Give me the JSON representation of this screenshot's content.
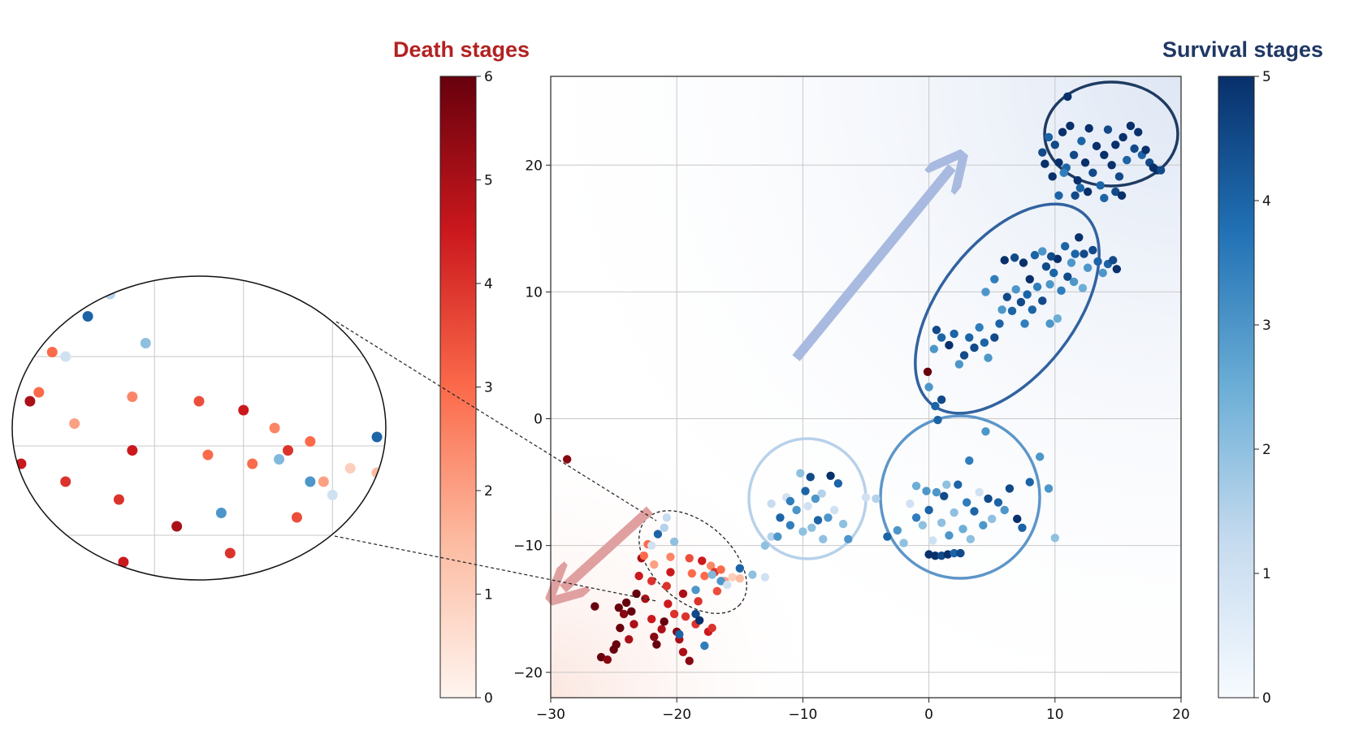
{
  "chart_data": {
    "type": "scatter",
    "title": "",
    "xlabel": "",
    "ylabel": "",
    "xlim": [
      -30,
      20
    ],
    "ylim": [
      -22,
      27
    ],
    "xticks": [
      "−30",
      "−20",
      "−10",
      "0",
      "10",
      "20"
    ],
    "xtick_values": [
      -30,
      -20,
      -10,
      0,
      10,
      20
    ],
    "yticks": [
      "−20",
      "−10",
      "0",
      "10",
      "20"
    ],
    "ytick_values": [
      -20,
      -10,
      0,
      10,
      20
    ],
    "grid": true,
    "death_colorbar": {
      "title": "Death stages",
      "title_color": "#b22222",
      "range": [
        0,
        6
      ],
      "ticks": [
        "0",
        "1",
        "2",
        "3",
        "4",
        "5",
        "6"
      ],
      "colormap": [
        "#fff5f0",
        "#fcbba1",
        "#fb6a4a",
        "#cb181d",
        "#67000d"
      ]
    },
    "survival_colorbar": {
      "title": "Survival stages",
      "title_color": "#1f3864",
      "range": [
        0,
        5
      ],
      "ticks": [
        "0",
        "1",
        "2",
        "3",
        "4",
        "5"
      ],
      "colormap": [
        "#f7fbff",
        "#c6dbef",
        "#6baed6",
        "#2171b5",
        "#08306b"
      ]
    },
    "series": [
      {
        "group": "death",
        "points": [
          [
            -26.5,
            -14.8,
            6
          ],
          [
            -26,
            -18.8,
            6
          ],
          [
            -25.5,
            -19,
            5.5
          ],
          [
            -25,
            -18.2,
            6
          ],
          [
            -24.5,
            -16.5,
            6
          ],
          [
            -24.8,
            -17.8,
            6
          ],
          [
            -24.2,
            -15.4,
            5.5
          ],
          [
            -24,
            -14.5,
            6
          ],
          [
            -23.6,
            -15.2,
            6
          ],
          [
            -23.4,
            -16.2,
            5
          ],
          [
            -23.2,
            -13.8,
            6
          ],
          [
            -23,
            -12.4,
            4.5
          ],
          [
            -22.8,
            -11,
            5
          ],
          [
            -22.5,
            -14.2,
            5
          ],
          [
            -22,
            -15.8,
            4.5
          ],
          [
            -22,
            -12.8,
            4
          ],
          [
            -21.8,
            -17.2,
            5.5
          ],
          [
            -21.6,
            -17.8,
            6
          ],
          [
            -21.2,
            -16.6,
            5
          ],
          [
            -21,
            -16,
            6
          ],
          [
            -20.8,
            -13.2,
            4
          ],
          [
            -20.5,
            -10.9,
            2.5
          ],
          [
            -20.5,
            -12.1,
            4.5
          ],
          [
            -20.2,
            -15.4,
            4
          ],
          [
            -20,
            -16.8,
            5.5
          ],
          [
            -19.8,
            -17.4,
            5
          ],
          [
            -19.5,
            -18.4,
            5
          ],
          [
            -19.5,
            -13.8,
            5
          ],
          [
            -19.3,
            -15.6,
            4
          ],
          [
            -19,
            -19.1,
            5.5
          ],
          [
            -19,
            -11,
            3.5
          ],
          [
            -18.8,
            -12.2,
            3
          ],
          [
            -18.5,
            -16.2,
            4
          ],
          [
            -18.3,
            -14.4,
            4
          ],
          [
            -18,
            -11.2,
            4.5
          ],
          [
            -17.8,
            -12.4,
            3
          ],
          [
            -17.5,
            -16.8,
            4.5
          ],
          [
            -17.3,
            -11.6,
            2.5
          ],
          [
            -17,
            -12.1,
            4
          ],
          [
            -16.8,
            -13.6,
            3.5
          ],
          [
            -16.5,
            -11.9,
            3
          ],
          [
            -16.2,
            -12.8,
            2
          ],
          [
            -15.6,
            -12.5,
            1
          ],
          [
            -15,
            -12.6,
            1.5
          ],
          [
            -21.8,
            -11.5,
            2
          ],
          [
            -22.6,
            -10.8,
            3
          ],
          [
            -17.2,
            -16.5,
            4
          ],
          [
            -24.6,
            -14.9,
            6
          ],
          [
            -23.8,
            -17.4,
            5
          ],
          [
            -20.7,
            -14.6,
            4.5
          ],
          [
            -22.3,
            -9.9,
            3
          ],
          [
            -28.7,
            -3.2,
            5.5
          ],
          [
            -0.1,
            3.7,
            6
          ]
        ]
      },
      {
        "group": "survival",
        "points": [
          [
            -22,
            -10,
            1
          ],
          [
            -21.5,
            -9.1,
            4
          ],
          [
            -21,
            -8.6,
            1.5
          ],
          [
            -20.2,
            -9.7,
            2
          ],
          [
            -20.8,
            -7.8,
            1.2
          ],
          [
            -18.5,
            -13.5,
            3
          ],
          [
            -17.2,
            -12.3,
            2.2
          ],
          [
            -16.5,
            -12.8,
            3
          ],
          [
            -16,
            -13.1,
            1
          ],
          [
            -15,
            -11.8,
            4
          ],
          [
            -14,
            -12.3,
            2
          ],
          [
            -13,
            -12.5,
            1
          ],
          [
            -19.8,
            -17,
            4
          ],
          [
            -18.5,
            -15.4,
            4.5
          ],
          [
            -18.2,
            -15.9,
            5
          ],
          [
            -17.8,
            -17.9,
            3.5
          ],
          [
            -13,
            -10,
            2
          ],
          [
            -12.5,
            -9.3,
            1.5
          ],
          [
            -12,
            -9.3,
            3
          ],
          [
            -11.8,
            -7.8,
            4
          ],
          [
            -11,
            -8.4,
            3.5
          ],
          [
            -11.3,
            -6.2,
            1
          ],
          [
            -10.5,
            -7.2,
            3
          ],
          [
            -10,
            -8.9,
            2
          ],
          [
            -9.8,
            -5.7,
            4
          ],
          [
            -9.6,
            -6.9,
            1
          ],
          [
            -9.3,
            -8.6,
            2
          ],
          [
            -9,
            -6.3,
            3
          ],
          [
            -8.8,
            -8,
            4
          ],
          [
            -8.5,
            -5.9,
            1.5
          ],
          [
            -8.4,
            -9.5,
            2
          ],
          [
            -8,
            -7.8,
            3
          ],
          [
            -7.8,
            -4.5,
            5
          ],
          [
            -7.5,
            -7.2,
            1
          ],
          [
            -7.2,
            -5.1,
            4
          ],
          [
            -6.8,
            -8.3,
            2
          ],
          [
            -6.4,
            -9.5,
            3
          ],
          [
            -12.5,
            -6.7,
            1.2
          ],
          [
            -11,
            -6.5,
            3.5
          ],
          [
            -10.2,
            -4.3,
            2
          ],
          [
            -9.4,
            -4.6,
            4.5
          ],
          [
            -5,
            -6.2,
            1
          ],
          [
            -4.2,
            -6.3,
            1.5
          ],
          [
            -3.3,
            -9.3,
            4
          ],
          [
            -2.5,
            -8.8,
            3
          ],
          [
            -2,
            -9.8,
            2
          ],
          [
            -1.5,
            -6.7,
            1
          ],
          [
            -1,
            -7.8,
            3.5
          ],
          [
            -0.5,
            -8.4,
            2
          ],
          [
            0,
            -7.2,
            4
          ],
          [
            0.3,
            -9.6,
            1
          ],
          [
            0.6,
            -5.8,
            3
          ],
          [
            1,
            -8.2,
            2
          ],
          [
            1.2,
            -6.1,
            4.5
          ],
          [
            1.6,
            -9.2,
            3
          ],
          [
            2,
            -7.4,
            2
          ],
          [
            2.3,
            -5.2,
            4
          ],
          [
            2.7,
            -8.7,
            2.5
          ],
          [
            3,
            -6.6,
            3.5
          ],
          [
            3.3,
            -9.5,
            2
          ],
          [
            3.6,
            -7.3,
            4
          ],
          [
            4,
            -5.8,
            1
          ],
          [
            4.3,
            -8.4,
            3
          ],
          [
            4.7,
            -6.3,
            4.5
          ],
          [
            5,
            -7.9,
            2
          ],
          [
            5.5,
            -6.6,
            4
          ],
          [
            6,
            -7.2,
            3
          ],
          [
            6.4,
            -5.5,
            4.5
          ],
          [
            7,
            -7.9,
            5
          ],
          [
            7.4,
            -8.6,
            4
          ],
          [
            8,
            -5,
            4
          ],
          [
            8.8,
            -3,
            3
          ],
          [
            9.5,
            -5.5,
            3
          ],
          [
            10,
            -9.4,
            2
          ],
          [
            0,
            -10.7,
            5
          ],
          [
            0.5,
            -10.8,
            5
          ],
          [
            1,
            -10.8,
            4.5
          ],
          [
            1.5,
            -10.7,
            5
          ],
          [
            2,
            -10.6,
            4
          ],
          [
            2.5,
            -10.6,
            4.5
          ],
          [
            -1,
            -5.3,
            2.5
          ],
          [
            -0.2,
            -5.7,
            3
          ],
          [
            1.4,
            -5.2,
            2
          ],
          [
            3.2,
            -3.3,
            3.5
          ],
          [
            4.5,
            -1,
            3
          ],
          [
            0,
            2.5,
            3
          ],
          [
            0.5,
            1,
            4
          ],
          [
            1,
            1.5,
            4.5
          ],
          [
            0.7,
            -0.1,
            4
          ],
          [
            0.4,
            5.5,
            3
          ],
          [
            0.6,
            7,
            4.5
          ],
          [
            1,
            6.4,
            4
          ],
          [
            1.6,
            5.8,
            5
          ],
          [
            2,
            6.7,
            4
          ],
          [
            2.4,
            4.3,
            3
          ],
          [
            2.8,
            5,
            4.5
          ],
          [
            3.2,
            6.4,
            4
          ],
          [
            3.6,
            5.6,
            4.5
          ],
          [
            4,
            7.2,
            3.5
          ],
          [
            4.4,
            6,
            4
          ],
          [
            4.7,
            4.8,
            3
          ],
          [
            5.2,
            6.4,
            4.5
          ],
          [
            5.6,
            7.5,
            4
          ],
          [
            5.8,
            8.6,
            3
          ],
          [
            6.2,
            9.6,
            4.5
          ],
          [
            6.6,
            8.5,
            4
          ],
          [
            6.9,
            10.2,
            3
          ],
          [
            7.3,
            9.2,
            4.5
          ],
          [
            7.6,
            7.5,
            3.5
          ],
          [
            7.8,
            9.8,
            4
          ],
          [
            8,
            11,
            5
          ],
          [
            8.2,
            8.6,
            4
          ],
          [
            8.6,
            10.4,
            3.5
          ],
          [
            9,
            9.3,
            4.5
          ],
          [
            9.3,
            12,
            4.5
          ],
          [
            9.6,
            10.6,
            3
          ],
          [
            9.9,
            11.5,
            4
          ],
          [
            10.2,
            12.6,
            5
          ],
          [
            10.5,
            10.1,
            3.5
          ],
          [
            10.8,
            13.6,
            4
          ],
          [
            11,
            11.2,
            4.5
          ],
          [
            11.3,
            12.3,
            3
          ],
          [
            11.6,
            13,
            4
          ],
          [
            11.9,
            14.3,
            5
          ],
          [
            12.3,
            13,
            4.5
          ],
          [
            12.6,
            11.9,
            3
          ],
          [
            13,
            13.3,
            4.5
          ],
          [
            13.4,
            12.4,
            4
          ],
          [
            13.8,
            11.5,
            3
          ],
          [
            14.2,
            12.2,
            4
          ],
          [
            14.6,
            12.5,
            4.5
          ],
          [
            14.9,
            11.8,
            5
          ],
          [
            6,
            12.5,
            5
          ],
          [
            6.8,
            12.7,
            4.5
          ],
          [
            7.5,
            12.3,
            5
          ],
          [
            8.4,
            12.9,
            4
          ],
          [
            9,
            13.2,
            3
          ],
          [
            9.7,
            12.8,
            4.5
          ],
          [
            5.2,
            11,
            3.5
          ],
          [
            4.5,
            10,
            3
          ],
          [
            9.6,
            7.5,
            3
          ],
          [
            10.2,
            7.9,
            2.5
          ],
          [
            11.5,
            10.8,
            3
          ],
          [
            12.2,
            10.3,
            2.5
          ],
          [
            9,
            21,
            4.5
          ],
          [
            9.2,
            20.1,
            5
          ],
          [
            9.5,
            22.2,
            4
          ],
          [
            9.8,
            19.1,
            5
          ],
          [
            10,
            21.6,
            4.5
          ],
          [
            10.3,
            20.2,
            5
          ],
          [
            10.6,
            22.6,
            5
          ],
          [
            10.9,
            19.8,
            4
          ],
          [
            11.2,
            23.1,
            5
          ],
          [
            11.5,
            20.8,
            4.5
          ],
          [
            11.8,
            18.8,
            5
          ],
          [
            12.1,
            21.9,
            4
          ],
          [
            12.4,
            20.2,
            5
          ],
          [
            12.7,
            22.9,
            5
          ],
          [
            13,
            19.4,
            4.5
          ],
          [
            13.3,
            21.5,
            5
          ],
          [
            13.6,
            18.4,
            4
          ],
          [
            13.9,
            20.8,
            5
          ],
          [
            14.2,
            22.8,
            4.5
          ],
          [
            14.5,
            20,
            5
          ],
          [
            14.8,
            21.6,
            5
          ],
          [
            15.1,
            19.1,
            4.5
          ],
          [
            15.4,
            22.2,
            5
          ],
          [
            15.7,
            20.4,
            4
          ],
          [
            16,
            23.1,
            5
          ],
          [
            16.3,
            21.3,
            4.5
          ],
          [
            16.6,
            22.6,
            5
          ],
          [
            16.9,
            20.8,
            4
          ],
          [
            17.2,
            21.2,
            5
          ],
          [
            17.5,
            20.2,
            4.5
          ],
          [
            17.8,
            19.8,
            5
          ],
          [
            18.1,
            19.6,
            5
          ],
          [
            18.4,
            19.6,
            4.5
          ],
          [
            11,
            25.4,
            5
          ],
          [
            10.3,
            17.6,
            4
          ],
          [
            11.6,
            17.6,
            4.5
          ],
          [
            12.6,
            17.9,
            5
          ],
          [
            13.9,
            17.4,
            4
          ],
          [
            14.8,
            17.9,
            4.5
          ],
          [
            15.3,
            17.6,
            5
          ],
          [
            12,
            18.2,
            4
          ],
          [
            10.7,
            19.4,
            3.5
          ]
        ]
      }
    ],
    "annotations": {
      "inset_zoom": "magnified view of the dashed region near (-20, -12)"
    }
  }
}
